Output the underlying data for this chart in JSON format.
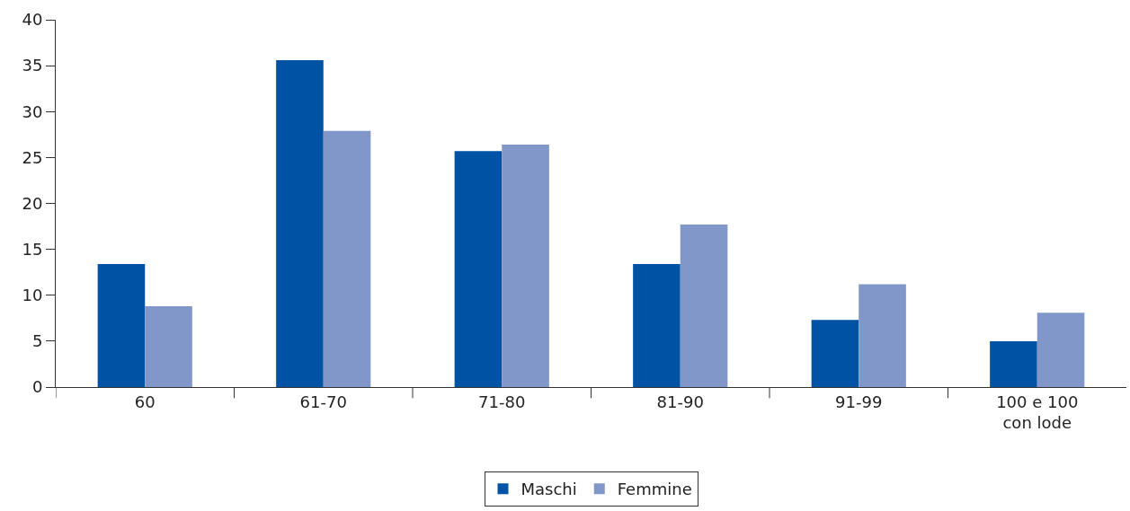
{
  "chart_data": {
    "type": "bar",
    "categories": [
      "60",
      "61-70",
      "71-80",
      "81-90",
      "91-99",
      "100 e 100 con lode"
    ],
    "series": [
      {
        "name": "Maschi",
        "color": "#0052a5",
        "values": [
          13.4,
          35.6,
          25.7,
          13.4,
          7.3,
          5.0
        ]
      },
      {
        "name": "Femmine",
        "color": "#8297c9",
        "values": [
          8.8,
          27.9,
          26.4,
          17.7,
          11.2,
          8.1
        ]
      }
    ],
    "ylim": [
      0,
      40
    ],
    "yticks": [
      0,
      5,
      10,
      15,
      20,
      25,
      30,
      35,
      40
    ],
    "grid": false,
    "legend": "bottom"
  }
}
